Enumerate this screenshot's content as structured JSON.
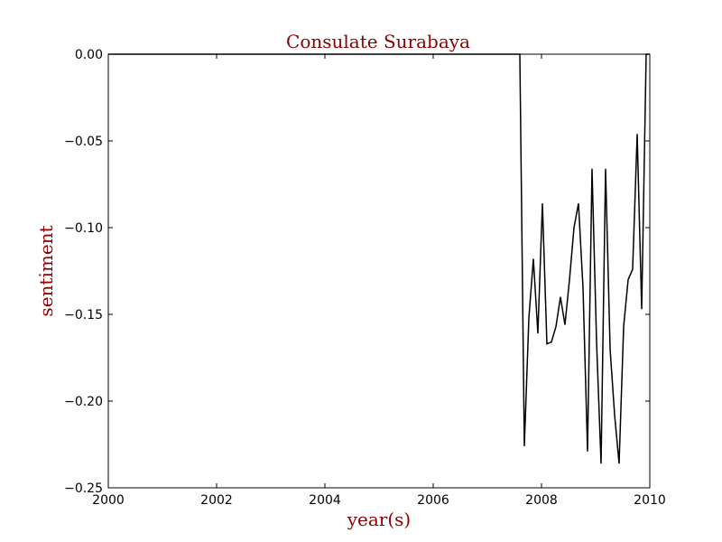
{
  "chart_data": {
    "type": "line",
    "title": "Consulate Surabaya",
    "xlabel": "year(s)",
    "ylabel": "sentiment",
    "xlim": [
      2000,
      2010
    ],
    "ylim": [
      -0.25,
      0.0
    ],
    "grid": false,
    "colors": {
      "title": "#8b0000",
      "axis_labels": "#8b0000",
      "line": "#000000"
    },
    "x_ticks": [
      2000,
      2002,
      2004,
      2006,
      2008,
      2010
    ],
    "x_tick_labels": [
      "2000",
      "2002",
      "2004",
      "2006",
      "2008",
      "2010"
    ],
    "y_ticks": [
      0.0,
      -0.05,
      -0.1,
      -0.15,
      -0.2,
      -0.25
    ],
    "y_tick_labels": [
      "0.00",
      "−0.05",
      "−0.10",
      "−0.15",
      "−0.20",
      "−0.25"
    ],
    "series": [
      {
        "x": [
          2000.0,
          2007.6,
          2007.683,
          2007.767,
          2007.85,
          2007.933,
          2008.017,
          2008.1,
          2008.183,
          2008.267,
          2008.35,
          2008.433,
          2008.517,
          2008.6,
          2008.683,
          2008.767,
          2008.85,
          2008.933,
          2009.017,
          2009.1,
          2009.183,
          2009.267,
          2009.35,
          2009.433,
          2009.517,
          2009.6,
          2009.683,
          2009.767,
          2009.85,
          2009.933,
          2010.0
        ],
        "y": [
          0.0,
          0.0,
          -0.226,
          -0.152,
          -0.118,
          -0.161,
          -0.086,
          -0.167,
          -0.166,
          -0.157,
          -0.14,
          -0.156,
          -0.13,
          -0.1,
          -0.086,
          -0.135,
          -0.229,
          -0.066,
          -0.166,
          -0.236,
          -0.066,
          -0.17,
          -0.208,
          -0.236,
          -0.157,
          -0.13,
          -0.124,
          -0.046,
          -0.147,
          0.0,
          0.0
        ]
      }
    ]
  }
}
